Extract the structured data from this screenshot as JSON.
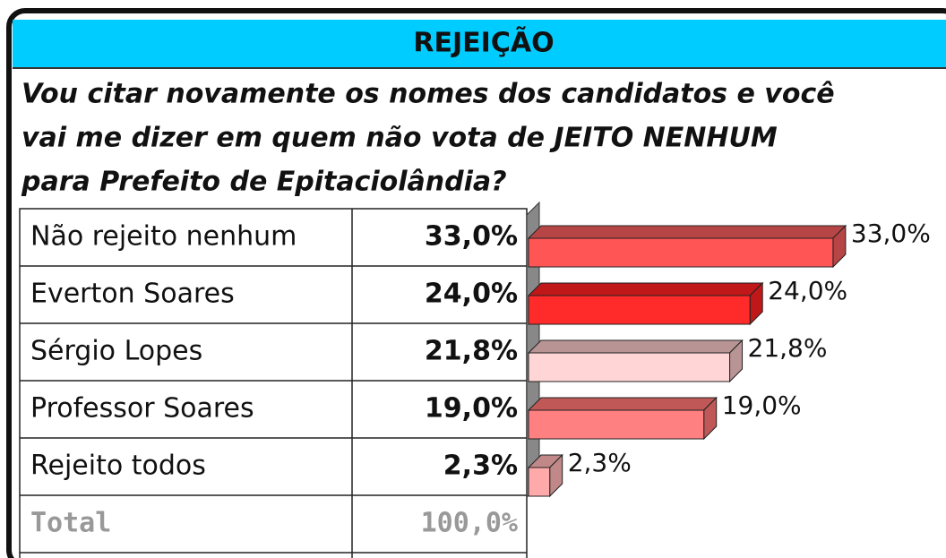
{
  "chart_data": {
    "type": "bar",
    "orientation": "horizontal",
    "title": "REJEIÇÃO",
    "subtitle_lines": [
      "Vou citar novamente os nomes dos candidatos e você",
      "vai me dizer em quem não vota de JEITO NENHUM",
      "para Prefeito de Epitaciolândia?"
    ],
    "categories": [
      "Não rejeito nenhum",
      "Everton Soares",
      "Sérgio Lopes",
      "Professor Soares",
      "Rejeito todos"
    ],
    "values": [
      33.0,
      24.0,
      21.8,
      19.0,
      2.3
    ],
    "value_labels": [
      "33,0%",
      "24,0%",
      "21,8%",
      "19,0%",
      "2,3%"
    ],
    "colors": [
      "#ff5555",
      "#ff2a2a",
      "#ffd5d5",
      "#ff8080",
      "#ffaaaa"
    ],
    "top_colors": [
      "#b84545",
      "#c01818",
      "#b89494",
      "#c05858",
      "#c08888"
    ],
    "xlim": [
      0,
      40
    ],
    "total": {
      "label": "Total",
      "value_label": "100,0%"
    }
  }
}
